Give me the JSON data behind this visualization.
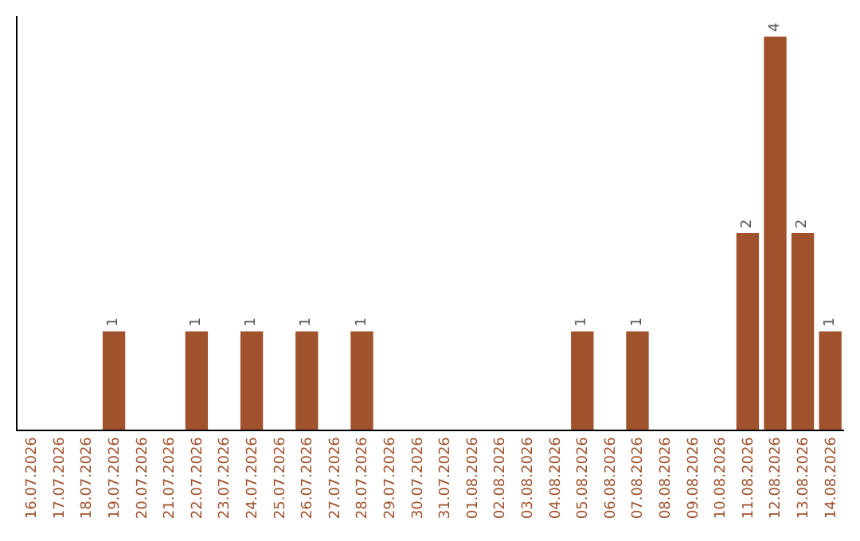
{
  "chart_data": {
    "type": "bar",
    "categories": [
      "16.07.2026",
      "17.07.2026",
      "18.07.2026",
      "19.07.2026",
      "20.07.2026",
      "21.07.2026",
      "22.07.2026",
      "23.07.2026",
      "24.07.2026",
      "25.07.2026",
      "26.07.2026",
      "27.07.2026",
      "28.07.2026",
      "29.07.2026",
      "30.07.2026",
      "31.07.2026",
      "01.08.2026",
      "02.08.2026",
      "03.08.2026",
      "04.08.2026",
      "05.08.2026",
      "06.08.2026",
      "07.08.2026",
      "08.08.2026",
      "09.08.2026",
      "10.08.2026",
      "11.08.2026",
      "12.08.2026",
      "13.08.2026",
      "14.08.2026"
    ],
    "values": [
      0,
      0,
      0,
      1,
      0,
      0,
      1,
      0,
      1,
      0,
      1,
      0,
      1,
      0,
      0,
      0,
      0,
      0,
      0,
      0,
      1,
      0,
      1,
      0,
      0,
      0,
      2,
      4,
      2,
      1
    ],
    "value_labels": [
      null,
      null,
      null,
      "1",
      null,
      null,
      "1",
      null,
      "1",
      null,
      "1",
      null,
      "1",
      null,
      null,
      null,
      null,
      null,
      null,
      null,
      "1",
      null,
      "1",
      null,
      null,
      null,
      "2",
      "4",
      "2",
      "1"
    ],
    "color": "#a0522d",
    "legend": false,
    "tick_labels": "x"
  }
}
